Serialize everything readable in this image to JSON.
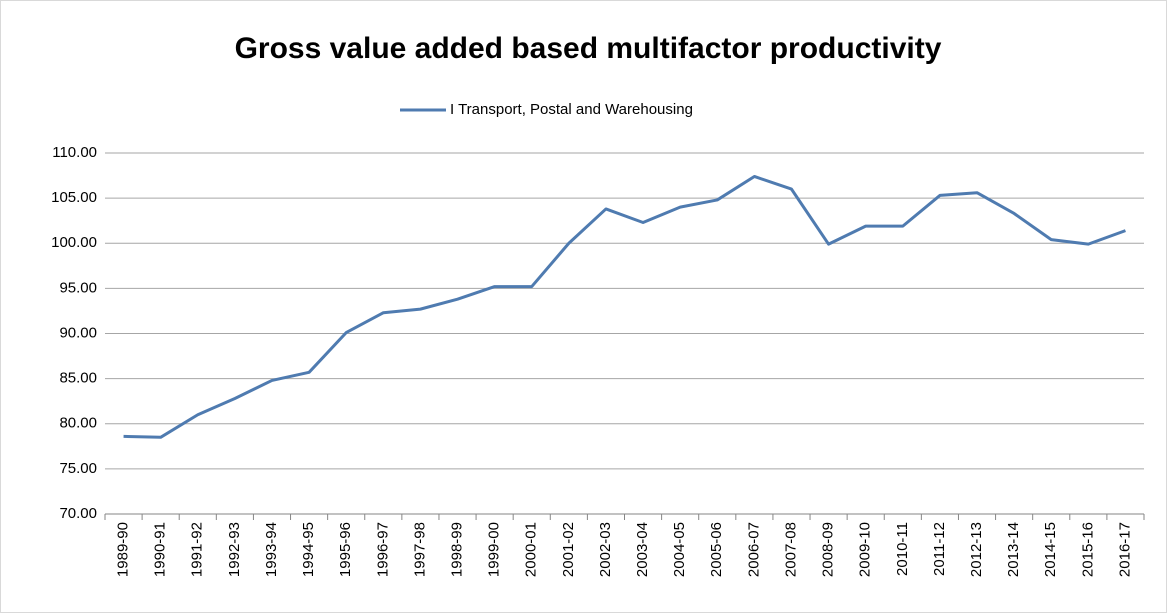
{
  "chart_data": {
    "type": "line",
    "title": "Gross value added based multifactor productivity",
    "categories": [
      "1989-90",
      "1990-91",
      "1991-92",
      "1992-93",
      "1993-94",
      "1994-95",
      "1995-96",
      "1996-97",
      "1997-98",
      "1998-99",
      "1999-00",
      "2000-01",
      "2001-02",
      "2002-03",
      "2003-04",
      "2004-05",
      "2005-06",
      "2006-07",
      "2007-08",
      "2008-09",
      "2009-10",
      "2010-11",
      "2011-12",
      "2012-13",
      "2013-14",
      "2014-15",
      "2015-16",
      "2016-17"
    ],
    "series": [
      {
        "name": "I Transport, Postal and Warehousing",
        "color": "#4f7bb0",
        "values": [
          78.6,
          78.5,
          81.0,
          82.8,
          84.8,
          85.7,
          90.1,
          92.3,
          92.7,
          93.8,
          95.2,
          95.2,
          100.0,
          103.8,
          102.3,
          104.0,
          104.8,
          107.4,
          106.0,
          99.9,
          101.9,
          101.9,
          105.3,
          105.6,
          103.3,
          100.4,
          99.9,
          101.4
        ]
      }
    ],
    "ylim": [
      70,
      110
    ],
    "yticks": [
      {
        "value": 70,
        "label": "70.00"
      },
      {
        "value": 75,
        "label": "75.00"
      },
      {
        "value": 80,
        "label": "80.00"
      },
      {
        "value": 85,
        "label": "85.00"
      },
      {
        "value": 90,
        "label": "90.00"
      },
      {
        "value": 95,
        "label": "95.00"
      },
      {
        "value": 100,
        "label": "100.00"
      },
      {
        "value": 105,
        "label": "105.00"
      },
      {
        "value": 110,
        "label": "110.00"
      }
    ],
    "grid": true,
    "legend": "top"
  }
}
